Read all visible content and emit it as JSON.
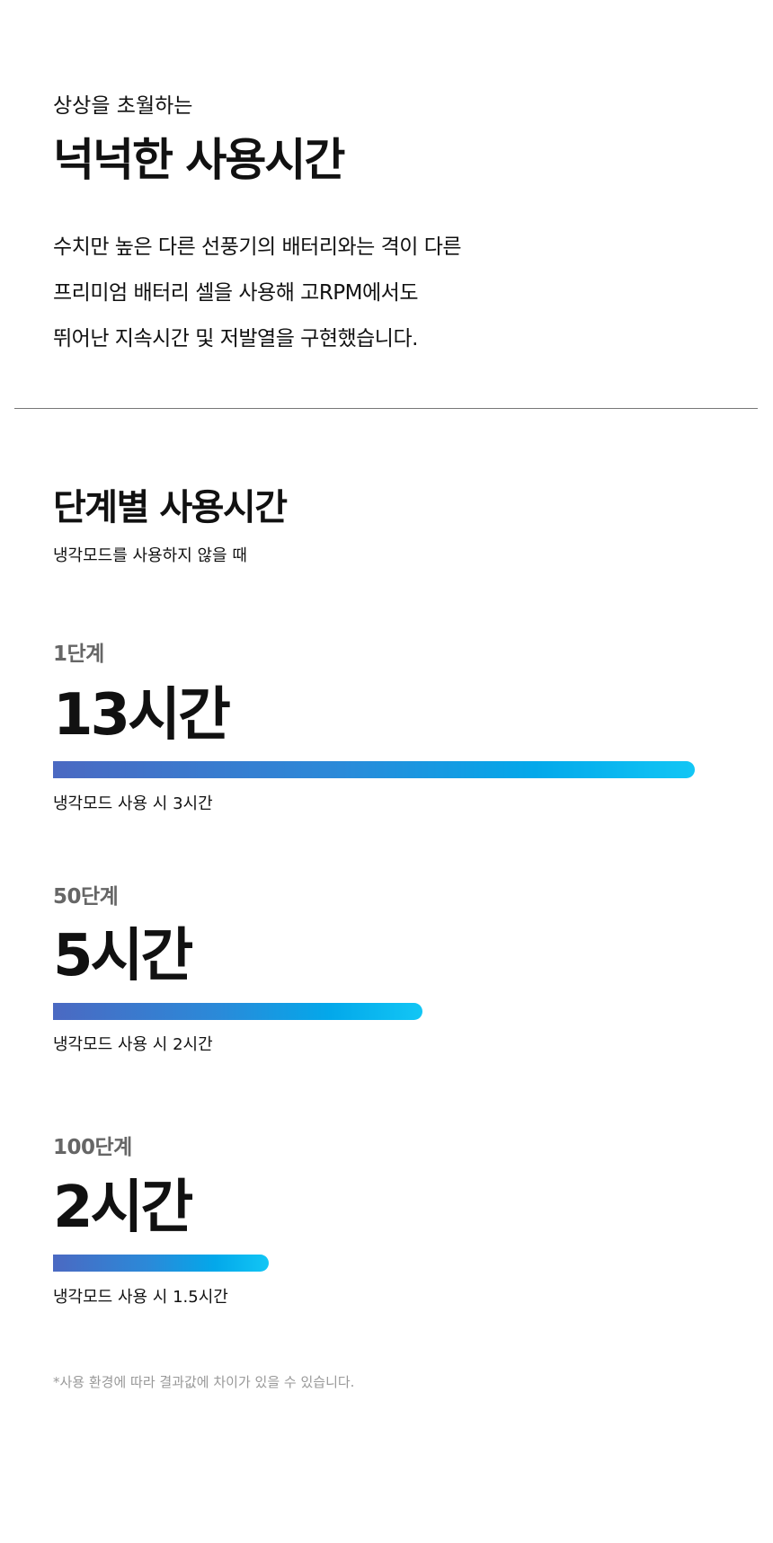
{
  "intro": {
    "eyebrow": "상상을 초월하는",
    "title": "넉넉한 사용시간",
    "paragraph": [
      "수치만 높은 다른 선풍기의 배터리와는 격이 다른",
      "프리미엄 배터리 셀을 사용해 고RPM에서도",
      "뛰어난 지속시간 및 저발열을 구현했습니다."
    ]
  },
  "section": {
    "title": "단계별 사용시간",
    "subtitle": "냉각모드를 사용하지 않을 때",
    "levels": [
      {
        "level": "1단계",
        "hours": "13시간",
        "cooling": "냉각모드 사용 시 3시간",
        "bar_fill_percent": 100
      },
      {
        "level": "50단계",
        "hours": "5시간",
        "cooling": "냉각모드 사용 시 2시간",
        "bar_fill_percent": 57.6
      },
      {
        "level": "100단계",
        "hours": "2시간",
        "cooling": "냉각모드 사용 시 1.5시간",
        "bar_fill_percent": 33.6
      }
    ],
    "footnote": "*사용 환경에 따라 결과값에 차이가 있을 수 있습니다."
  },
  "colors": {
    "bar_start": "#4b69c2",
    "bar_end": "#12c6f5",
    "level_label": "#666666"
  }
}
